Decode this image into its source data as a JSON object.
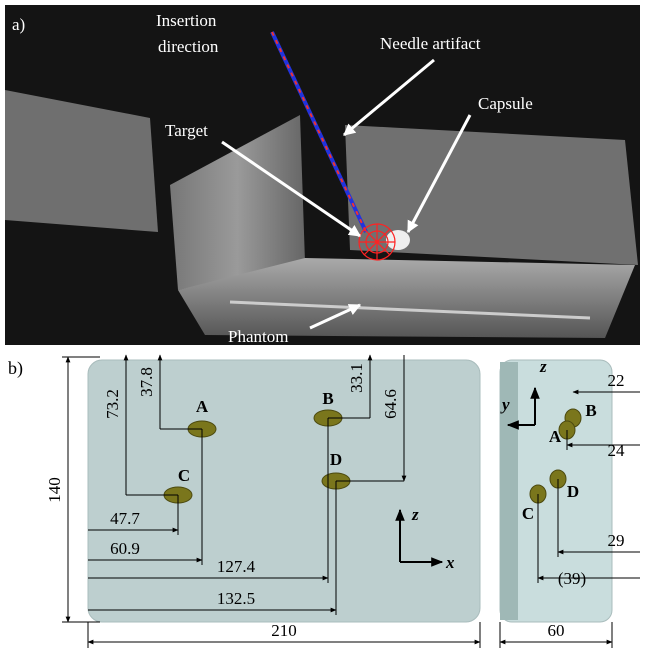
{
  "panel_a": {
    "label": "a)",
    "annotations": {
      "insertion": [
        "Insertion",
        "direction"
      ],
      "needle": "Needle artifact",
      "capsule": "Capsule",
      "target": "Target",
      "phantom": "Phantom"
    }
  },
  "panel_b": {
    "label": "b)",
    "front_view": {
      "points": [
        "A",
        "B",
        "C",
        "D"
      ],
      "dimensions": {
        "a_z": "37.8",
        "c_z": "73.2",
        "b_z": "33.1",
        "d_z": "64.6",
        "c_x": "47.7",
        "a_x": "60.9",
        "b_x": "127.4",
        "d_x": "132.5",
        "height": "140",
        "width": "210"
      },
      "axes": {
        "vertical": "z",
        "horizontal": "x"
      }
    },
    "side_view": {
      "points": [
        "A",
        "B",
        "C",
        "D"
      ],
      "dimensions": {
        "b_y": "22",
        "a_y": "24",
        "d_y": "29",
        "c_y": "(39)",
        "width": "60"
      },
      "axes": {
        "vertical": "z",
        "horizontal": "y"
      }
    }
  }
}
